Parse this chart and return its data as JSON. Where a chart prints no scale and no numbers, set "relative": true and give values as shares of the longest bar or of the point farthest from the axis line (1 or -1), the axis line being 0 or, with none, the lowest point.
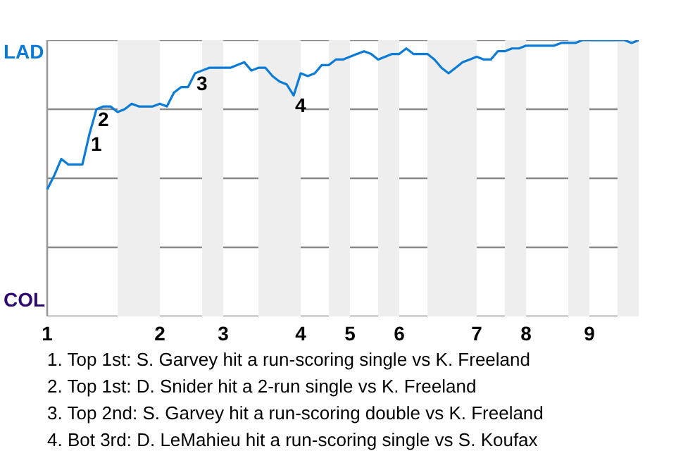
{
  "chart_data": {
    "type": "line",
    "relative": true,
    "categories": [
      "1",
      null,
      null,
      null,
      null,
      null,
      null,
      null,
      null,
      null,
      null,
      null,
      null,
      null,
      null,
      null,
      "2",
      null,
      null,
      null,
      null,
      null,
      null,
      null,
      null,
      "3",
      null,
      null,
      null,
      null,
      null,
      null,
      null,
      null,
      null,
      null,
      "4",
      null,
      null,
      null,
      null,
      null,
      null,
      "5",
      null,
      null,
      null,
      null,
      null,
      null,
      "6",
      null,
      null,
      null,
      null,
      null,
      null,
      null,
      null,
      null,
      null,
      "7",
      null,
      null,
      null,
      null,
      null,
      null,
      "8",
      null,
      null,
      null,
      null,
      null,
      null,
      null,
      null,
      "9",
      null,
      null,
      null,
      null,
      null,
      null,
      null
    ],
    "series": [
      {
        "color": "#0a7bd6",
        "values": [
          0.46,
          0.51,
          0.57,
          0.55,
          0.55,
          0.55,
          0.66,
          0.75,
          0.76,
          0.76,
          0.74,
          0.75,
          0.77,
          0.76,
          0.76,
          0.76,
          0.77,
          0.76,
          0.81,
          0.83,
          0.83,
          0.88,
          0.89,
          0.9,
          0.9,
          0.9,
          0.9,
          0.91,
          0.92,
          0.89,
          0.9,
          0.9,
          0.87,
          0.85,
          0.84,
          0.8,
          0.88,
          0.87,
          0.88,
          0.91,
          0.91,
          0.93,
          0.93,
          0.94,
          0.95,
          0.96,
          0.95,
          0.93,
          0.94,
          0.95,
          0.95,
          0.97,
          0.95,
          0.95,
          0.95,
          0.93,
          0.9,
          0.88,
          0.9,
          0.92,
          0.93,
          0.94,
          0.93,
          0.93,
          0.96,
          0.96,
          0.97,
          0.97,
          0.98,
          0.98,
          0.98,
          0.98,
          0.98,
          0.99,
          0.99,
          0.99,
          1,
          1,
          1,
          1,
          1,
          1,
          1,
          0.99,
          1
        ],
        "colors": [
          "#0a7bd6",
          "#0a7bd6",
          "#0a7bd6",
          "#0a7bd6",
          "#0a7bd6",
          "#0a7bd6",
          "#0a7bd6",
          "#0a7bd6",
          "#0a7bd6",
          "#0a7bd6",
          "#2e0a6e",
          "#2e0a6e",
          "#2e0a6e",
          "#2e0a6e",
          "#2e0a6e",
          "#2e0a6e",
          "#0a7bd6",
          "#0a7bd6",
          "#0a7bd6",
          "#0a7bd6",
          "#0a7bd6",
          "#0a7bd6",
          "#2e0a6e",
          "#2e0a6e",
          "#2e0a6e",
          "#0a7bd6",
          "#0a7bd6",
          "#0a7bd6",
          "#0a7bd6",
          "#0a7bd6",
          "#2e0a6e",
          "#2e0a6e",
          "#2e0a6e",
          "#2e0a6e",
          "#2e0a6e",
          "#2e0a6e",
          "#0a7bd6",
          "#0a7bd6",
          "#0a7bd6",
          "#0a7bd6",
          "#2e0a6e",
          "#2e0a6e",
          "#2e0a6e",
          "#0a7bd6",
          "#0a7bd6",
          "#0a7bd6",
          "#0a7bd6",
          "#2e0a6e",
          "#2e0a6e",
          "#2e0a6e",
          "#0a7bd6",
          "#0a7bd6",
          "#0a7bd6",
          "#0a7bd6",
          "#2e0a6e",
          "#2e0a6e",
          "#2e0a6e",
          "#2e0a6e",
          "#2e0a6e",
          "#2e0a6e",
          "#2e0a6e",
          "#0a7bd6",
          "#0a7bd6",
          "#0a7bd6",
          "#0a7bd6",
          "#2e0a6e",
          "#2e0a6e",
          "#2e0a6e",
          "#0a7bd6",
          "#0a7bd6",
          "#0a7bd6",
          "#0a7bd6",
          "#0a7bd6",
          "#0a7bd6",
          "#2e0a6e",
          "#2e0a6e",
          "#2e0a6e",
          "#0a7bd6",
          "#0a7bd6",
          "#0a7bd6",
          "#0a7bd6",
          "#2e0a6e",
          "#2e0a6e",
          "#2e0a6e",
          "#2e0a6e"
        ]
      }
    ],
    "grid": "y",
    "annotations": [
      "LAD",
      "COL",
      {
        "text": "1",
        "y": 0.66
      },
      {
        "text": "2",
        "y": 0.75
      },
      {
        "text": "3",
        "y": 0.88
      },
      {
        "text": "4",
        "y": 0.8
      },
      "1. Top 1st: S. Garvey hit a run-scoring single vs K. Freeland",
      "2. Top 1st: D. Snider hit a 2-run single vs K. Freeland",
      "3. Top 2nd: S. Garvey hit a run-scoring double vs K. Freeland",
      "4. Bot 3rd: D. LeMahieu hit a run-scoring single vs S. Koufax"
    ]
  }
}
